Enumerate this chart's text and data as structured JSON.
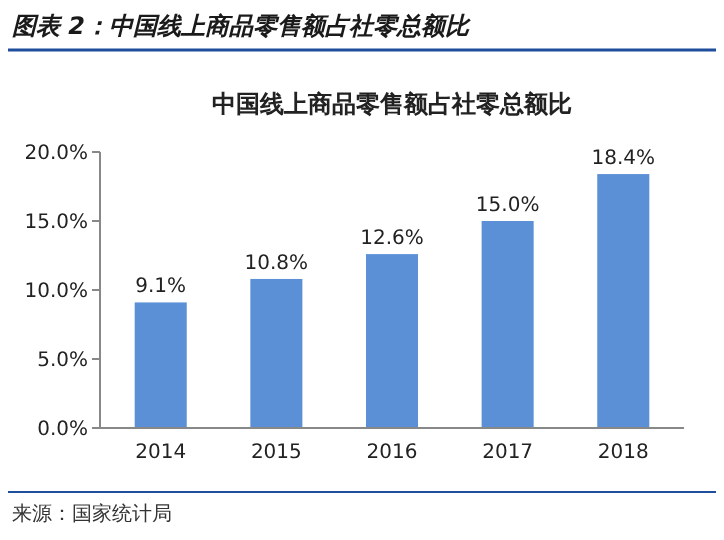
{
  "chart_data": {
    "type": "bar",
    "subtitle": "图表 2：中国线上商品零售额占社零总额比",
    "title": "中国线上商品零售额占社零总额比",
    "categories": [
      "2014",
      "2015",
      "2016",
      "2017",
      "2018"
    ],
    "values": [
      9.1,
      10.8,
      12.6,
      15.0,
      18.4
    ],
    "value_labels": [
      "9.1%",
      "10.8%",
      "12.6%",
      "15.0%",
      "18.4%"
    ],
    "color": "#5b8fd6",
    "ylim": [
      0,
      20
    ],
    "yticks": [
      {
        "value": 0,
        "label": "0.0%"
      },
      {
        "value": 5,
        "label": "5.0%"
      },
      {
        "value": 10,
        "label": "10.0%"
      },
      {
        "value": 15,
        "label": "15.0%"
      },
      {
        "value": 20,
        "label": "20.0%"
      }
    ],
    "grid": false,
    "annotations": [
      "来源：国家统计局"
    ]
  }
}
